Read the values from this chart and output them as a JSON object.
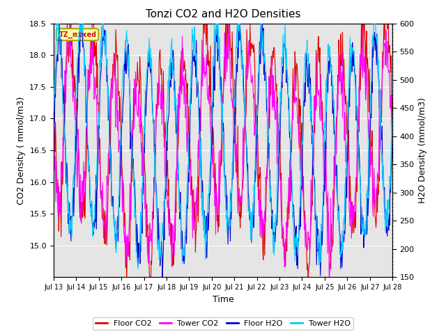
{
  "title": "Tonzi CO2 and H2O Densities",
  "xlabel": "Time",
  "ylabel_left": "CO2 Density ( mmol/m3)",
  "ylabel_right": "H2O Density (mmol/m3)",
  "ylim_left": [
    14.5,
    18.5
  ],
  "ylim_right": [
    150,
    600
  ],
  "yticks_left": [
    15.0,
    15.5,
    16.0,
    16.5,
    17.0,
    17.5,
    18.0,
    18.5
  ],
  "yticks_right": [
    150,
    200,
    250,
    300,
    350,
    400,
    450,
    500,
    550,
    600
  ],
  "xtick_labels": [
    "Jul 13",
    "Jul 14",
    "Jul 15",
    "Jul 16",
    "Jul 17",
    "Jul 18",
    "Jul 19",
    "Jul 20",
    "Jul 21",
    "Jul 22",
    "Jul 23",
    "Jul 24",
    "Jul 25",
    "Jul 26",
    "Jul 27",
    "Jul 28"
  ],
  "legend_labels": [
    "Floor CO2",
    "Tower CO2",
    "Floor H2O",
    "Tower H2O"
  ],
  "legend_colors": [
    "#dd0000",
    "#ff00ff",
    "#0000cc",
    "#00ccff"
  ],
  "annotation_text": "TZ_mixed",
  "annotation_color": "#cc0000",
  "annotation_bg": "#ffffaa",
  "annotation_border": "#aaaa00",
  "background_color": "#e5e5e5",
  "grid_color": "#ffffff",
  "n_points": 720,
  "period_days": 1.0,
  "co2_base": 16.7,
  "co2_amp": 1.5,
  "co2_noise": 0.25,
  "h2o_base": 380,
  "h2o_amp": 170,
  "h2o_noise": 20,
  "figsize": [
    6.4,
    4.8
  ],
  "dpi": 100
}
